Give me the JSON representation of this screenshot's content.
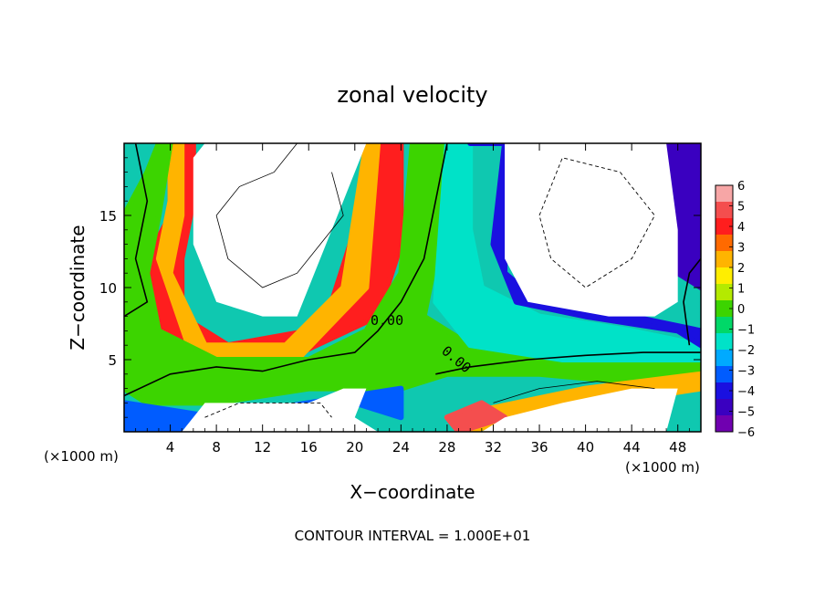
{
  "chart_data": {
    "type": "heatmap",
    "title": "zonal velocity",
    "xlabel": "X−coordinate",
    "ylabel": "Z−coordinate",
    "x_unit_label_left": "(×1000 m)",
    "x_unit_label_right": "(×1000 m)",
    "footer": "CONTOUR INTERVAL = 1.000E+01",
    "xlim": [
      0,
      50
    ],
    "ylim": [
      0,
      20
    ],
    "x_ticks": [
      "4",
      "8",
      "12",
      "16",
      "20",
      "24",
      "28",
      "32",
      "36",
      "40",
      "44",
      "48"
    ],
    "y_ticks": [
      "5",
      "10",
      "15"
    ],
    "colorbar": {
      "range": [
        -6,
        6
      ],
      "ticks": [
        "6",
        "5",
        "4",
        "3",
        "2",
        "1",
        "0",
        "−1",
        "−2",
        "−3",
        "−4",
        "−5",
        "−6"
      ],
      "colors": [
        "#f7a6a6",
        "#f44e4e",
        "#ff1e1e",
        "#ff6a00",
        "#ffb400",
        "#ffee00",
        "#b4ea00",
        "#3cd400",
        "#00d868",
        "#00e2c8",
        "#00aaff",
        "#005cff",
        "#1a10e0",
        "#3a00c0",
        "#7000b0"
      ]
    },
    "contour_labels": [
      "0.00",
      "0.00"
    ],
    "blobs": [
      {
        "name": "left-red-band",
        "level": 4,
        "points": [
          [
            0,
            9
          ],
          [
            2,
            12
          ],
          [
            4,
            15
          ],
          [
            4,
            20
          ],
          [
            6,
            20
          ],
          [
            6,
            16
          ],
          [
            5,
            12
          ],
          [
            5,
            8
          ],
          [
            9,
            6
          ],
          [
            16,
            7
          ],
          [
            18,
            9
          ],
          [
            20,
            14
          ],
          [
            22,
            20
          ],
          [
            24,
            20
          ],
          [
            24,
            13
          ],
          [
            22,
            8
          ],
          [
            14,
            5
          ],
          [
            6,
            4
          ],
          [
            2,
            5
          ],
          [
            0,
            6
          ]
        ]
      },
      {
        "name": "orange-rim",
        "level": 3,
        "points": [
          [
            3,
            12
          ],
          [
            4,
            16
          ],
          [
            4,
            20
          ],
          [
            5,
            20
          ],
          [
            5,
            15
          ],
          [
            4,
            11
          ],
          [
            7,
            6
          ],
          [
            14,
            6
          ],
          [
            19,
            10
          ],
          [
            21,
            20
          ],
          [
            22,
            20
          ],
          [
            21,
            10
          ],
          [
            15,
            5
          ],
          [
            6,
            5
          ]
        ]
      },
      {
        "name": "green-core",
        "level": 0,
        "points": [
          [
            0,
            3
          ],
          [
            0,
            15
          ],
          [
            2,
            18
          ],
          [
            3,
            20
          ],
          [
            4,
            20
          ],
          [
            3,
            15
          ],
          [
            2,
            11
          ],
          [
            3,
            7
          ],
          [
            8,
            5
          ],
          [
            16,
            5
          ],
          [
            21,
            7
          ],
          [
            24,
            11
          ],
          [
            25,
            20
          ],
          [
            28,
            20
          ],
          [
            27,
            12
          ],
          [
            26,
            8
          ],
          [
            30,
            6
          ],
          [
            38,
            5
          ],
          [
            50,
            5
          ],
          [
            50,
            3
          ],
          [
            36,
            4
          ],
          [
            28,
            4
          ],
          [
            24,
            3
          ],
          [
            16,
            3
          ],
          [
            8,
            2
          ],
          [
            2,
            2
          ]
        ]
      },
      {
        "name": "cyan-zone",
        "level": -2,
        "points": [
          [
            28,
            20
          ],
          [
            30,
            20
          ],
          [
            30,
            14
          ],
          [
            31,
            10
          ],
          [
            36,
            8
          ],
          [
            44,
            7
          ],
          [
            50,
            6
          ],
          [
            50,
            5
          ],
          [
            38,
            5
          ],
          [
            30,
            6
          ],
          [
            27,
            9
          ]
        ]
      },
      {
        "name": "blue-zone",
        "level": -4,
        "points": [
          [
            30,
            20
          ],
          [
            33,
            20
          ],
          [
            32,
            13
          ],
          [
            34,
            9
          ],
          [
            40,
            8
          ],
          [
            48,
            7
          ],
          [
            50,
            6
          ],
          [
            50,
            7
          ],
          [
            44,
            8
          ],
          [
            36,
            9
          ],
          [
            33,
            11
          ],
          [
            33,
            20
          ]
        ]
      },
      {
        "name": "right-blue-edge",
        "level": -5,
        "points": [
          [
            47,
            20
          ],
          [
            50,
            20
          ],
          [
            50,
            10
          ],
          [
            48,
            11
          ],
          [
            48,
            15
          ]
        ]
      },
      {
        "name": "lower-orange",
        "level": 3,
        "points": [
          [
            28,
            1
          ],
          [
            34,
            2
          ],
          [
            40,
            3
          ],
          [
            50,
            4
          ],
          [
            50,
            3
          ],
          [
            42,
            2
          ],
          [
            34,
            1
          ],
          [
            30,
            0
          ]
        ]
      },
      {
        "name": "lower-red",
        "level": 5,
        "points": [
          [
            29,
            0
          ],
          [
            33,
            1
          ],
          [
            31,
            2
          ],
          [
            28,
            1
          ]
        ]
      },
      {
        "name": "left-cyan-floor",
        "level": -3,
        "points": [
          [
            0,
            0
          ],
          [
            6,
            0
          ],
          [
            10,
            1
          ],
          [
            16,
            1
          ],
          [
            20,
            2
          ],
          [
            24,
            1
          ],
          [
            24,
            3
          ],
          [
            16,
            2
          ],
          [
            8,
            1
          ],
          [
            0,
            2
          ]
        ]
      }
    ],
    "white_regions": [
      {
        "name": "upper-left-white",
        "points": [
          [
            6,
            19
          ],
          [
            6,
            13
          ],
          [
            8,
            9
          ],
          [
            12,
            8
          ],
          [
            15,
            8
          ],
          [
            17,
            12
          ],
          [
            19,
            16
          ],
          [
            21,
            20
          ],
          [
            7,
            20
          ]
        ]
      },
      {
        "name": "upper-right-white",
        "points": [
          [
            33,
            20
          ],
          [
            33,
            12
          ],
          [
            35,
            9
          ],
          [
            42,
            8
          ],
          [
            46,
            8
          ],
          [
            48,
            9
          ],
          [
            48,
            14
          ],
          [
            47,
            20
          ]
        ]
      },
      {
        "name": "lower-mid-white",
        "points": [
          [
            5,
            0
          ],
          [
            7,
            2
          ],
          [
            12,
            2
          ],
          [
            16,
            2
          ],
          [
            19,
            3
          ],
          [
            21,
            3
          ],
          [
            20,
            1
          ],
          [
            22,
            0
          ]
        ]
      },
      {
        "name": "lower-right-white",
        "points": [
          [
            31,
            0
          ],
          [
            33,
            1
          ],
          [
            38,
            2
          ],
          [
            44,
            3
          ],
          [
            48,
            3
          ],
          [
            47,
            0
          ]
        ]
      }
    ],
    "contours_solid": [
      [
        [
          0,
          2.5
        ],
        [
          4,
          4
        ],
        [
          8,
          4.5
        ],
        [
          12,
          4.2
        ],
        [
          16,
          5
        ],
        [
          20,
          5.5
        ],
        [
          22,
          7
        ],
        [
          24,
          9
        ],
        [
          26,
          12
        ],
        [
          27,
          16
        ],
        [
          28,
          20
        ]
      ],
      [
        [
          27,
          4
        ],
        [
          30,
          4.5
        ],
        [
          35,
          5
        ],
        [
          40,
          5.3
        ],
        [
          45,
          5.5
        ],
        [
          50,
          5.5
        ]
      ],
      [
        [
          0,
          8
        ],
        [
          2,
          9
        ],
        [
          1,
          12
        ],
        [
          2,
          16
        ],
        [
          1,
          20
        ]
      ],
      [
        [
          49,
          6
        ],
        [
          48.5,
          9
        ],
        [
          49,
          11
        ],
        [
          50,
          12
        ]
      ]
    ],
    "contours_thin": [
      [
        [
          8,
          15
        ],
        [
          10,
          17
        ],
        [
          13,
          18
        ],
        [
          15,
          20
        ]
      ],
      [
        [
          8,
          15
        ],
        [
          9,
          12
        ],
        [
          12,
          10
        ],
        [
          15,
          11
        ],
        [
          17,
          13
        ],
        [
          19,
          15
        ],
        [
          18,
          18
        ]
      ],
      [
        [
          32,
          2
        ],
        [
          36,
          3
        ],
        [
          41,
          3.5
        ],
        [
          46,
          3
        ]
      ]
    ],
    "contours_dashed": [
      [
        [
          7,
          1
        ],
        [
          10,
          2
        ],
        [
          14,
          2
        ],
        [
          17,
          2
        ],
        [
          18,
          1
        ]
      ],
      [
        [
          36,
          15
        ],
        [
          38,
          19
        ],
        [
          43,
          18
        ],
        [
          46,
          15
        ],
        [
          44,
          12
        ],
        [
          40,
          10
        ],
        [
          37,
          12
        ],
        [
          36,
          15
        ]
      ]
    ]
  }
}
